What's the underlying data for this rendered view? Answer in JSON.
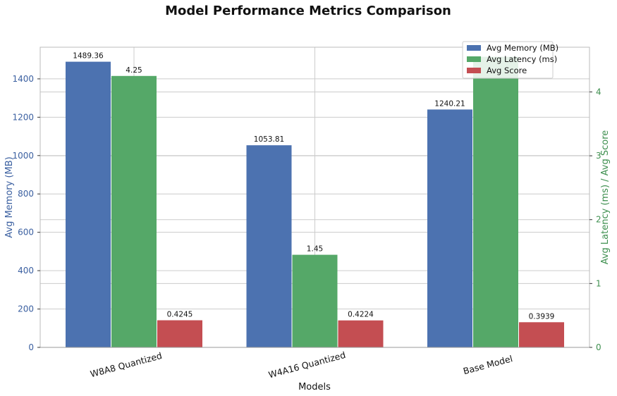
{
  "chart_data": {
    "type": "bar",
    "title": "Model Performance Metrics Comparison",
    "xlabel": "Models",
    "ylabel_left": "Avg Memory (MB)",
    "ylabel_right": "Avg Latency (ms) / Avg Score",
    "categories": [
      "W8A8 Quantized",
      "W4A16 Quantized",
      "Base Model"
    ],
    "series": [
      {
        "name": "Avg Memory (MB)",
        "axis": "left",
        "color": "#4c72b0",
        "values": [
          1489.36,
          1053.81,
          1240.21
        ],
        "labels": [
          "1489.36",
          "1053.81",
          "1240.21"
        ]
      },
      {
        "name": "Avg Latency (ms)",
        "axis": "right",
        "color": "#55a868",
        "values": [
          4.25,
          1.45,
          4.55
        ],
        "labels": [
          "4.25",
          "1.45",
          ""
        ]
      },
      {
        "name": "Avg Score",
        "axis": "right",
        "color": "#c44e52",
        "values": [
          0.4245,
          0.4224,
          0.3939
        ],
        "labels": [
          "0.4245",
          "0.4224",
          "0.3939"
        ]
      }
    ],
    "ylim_left": [
      0,
      1565
    ],
    "ylim_right": [
      0,
      4.7
    ],
    "yticks_left": [
      "0",
      "200",
      "400",
      "600",
      "800",
      "1000",
      "1200",
      "1400"
    ],
    "yticks_right": [
      "0",
      "1",
      "2",
      "3",
      "4"
    ],
    "grid": true,
    "legend_position": "top-right",
    "left_axis_color": "#3a5fa0",
    "right_axis_color": "#3e8f4f"
  }
}
